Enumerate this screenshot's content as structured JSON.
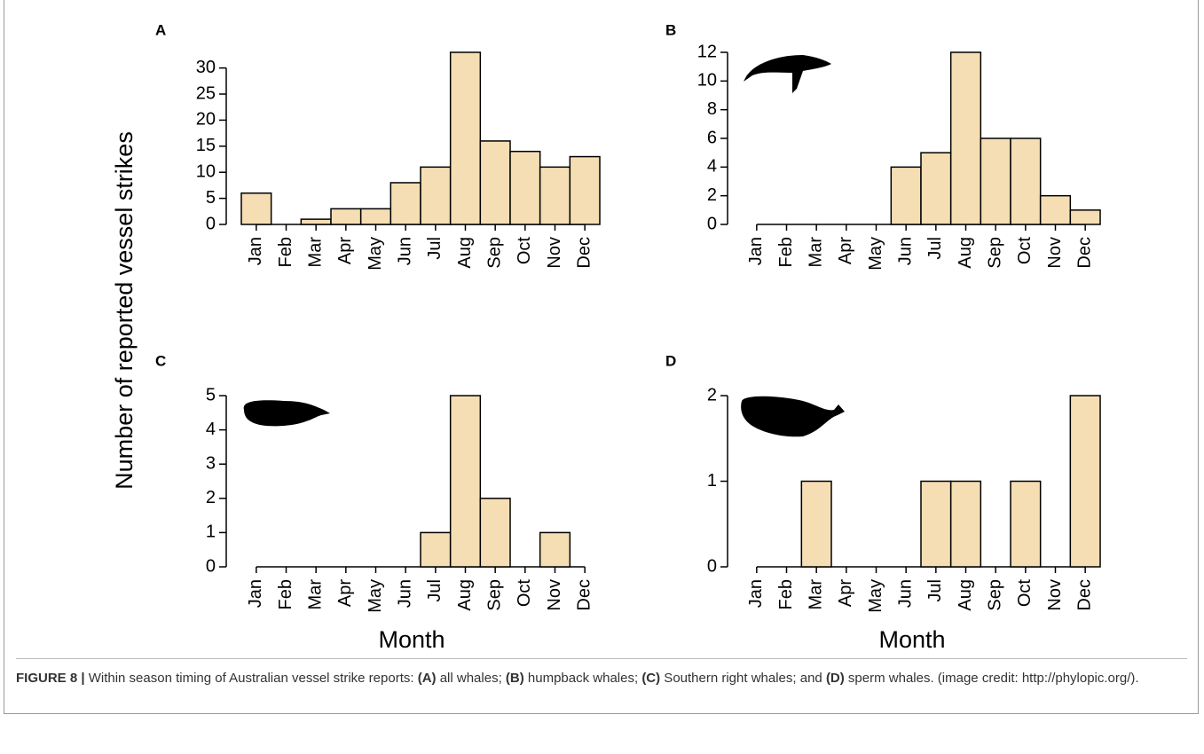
{
  "shared_ylabel": "Number of reported vessel strikes",
  "chart_data": [
    {
      "type": "bar",
      "panel": "A",
      "color": "#f5deb3",
      "categories": [
        "Jan",
        "Feb",
        "Mar",
        "Apr",
        "May",
        "Jun",
        "Jul",
        "Aug",
        "Sep",
        "Oct",
        "Nov",
        "Dec"
      ],
      "values": [
        6,
        0,
        1,
        3,
        3,
        8,
        11,
        33,
        16,
        14,
        11,
        13
      ],
      "ylim": [
        0,
        33
      ],
      "yticks": [
        0,
        5,
        10,
        15,
        20,
        25,
        30
      ]
    },
    {
      "type": "bar",
      "panel": "B",
      "color": "#f5deb3",
      "categories": [
        "Jan",
        "Feb",
        "Mar",
        "Apr",
        "May",
        "Jun",
        "Jul",
        "Aug",
        "Sep",
        "Oct",
        "Nov",
        "Dec"
      ],
      "values": [
        0,
        0,
        0,
        0,
        0,
        4,
        5,
        12,
        6,
        6,
        2,
        1
      ],
      "ylim": [
        0,
        12
      ],
      "yticks": [
        0,
        2,
        4,
        6,
        8,
        10,
        12
      ]
    },
    {
      "type": "bar",
      "panel": "C",
      "color": "#f5deb3",
      "xlabel": "Month",
      "categories": [
        "Jan",
        "Feb",
        "Mar",
        "Apr",
        "May",
        "Jun",
        "Jul",
        "Aug",
        "Sep",
        "Oct",
        "Nov",
        "Dec"
      ],
      "values": [
        0,
        0,
        0,
        0,
        0,
        0,
        1,
        5,
        2,
        0,
        1,
        0
      ],
      "ylim": [
        0,
        5
      ],
      "yticks": [
        0,
        1,
        2,
        3,
        4,
        5
      ]
    },
    {
      "type": "bar",
      "panel": "D",
      "color": "#f5deb3",
      "xlabel": "Month",
      "categories": [
        "Jan",
        "Feb",
        "Mar",
        "Apr",
        "May",
        "Jun",
        "Jul",
        "Aug",
        "Sep",
        "Oct",
        "Nov",
        "Dec"
      ],
      "values": [
        0,
        0,
        1,
        0,
        0,
        0,
        1,
        1,
        0,
        1,
        0,
        2
      ],
      "ylim": [
        0,
        2
      ],
      "yticks": [
        0,
        1,
        2
      ]
    }
  ],
  "caption": [
    {
      "text": "FIGURE 8 |",
      "bold": true
    },
    {
      "text": " Within season timing of Australian vessel strike reports: ",
      "bold": false
    },
    {
      "text": "(A)",
      "bold": true
    },
    {
      "text": " all whales; ",
      "bold": false
    },
    {
      "text": "(B)",
      "bold": true
    },
    {
      "text": " humpback whales; ",
      "bold": false
    },
    {
      "text": "(C)",
      "bold": true
    },
    {
      "text": " Southern right whales; and ",
      "bold": false
    },
    {
      "text": "(D)",
      "bold": true
    },
    {
      "text": " sperm whales. (image credit: http://phylopic.org/).",
      "bold": false
    }
  ]
}
